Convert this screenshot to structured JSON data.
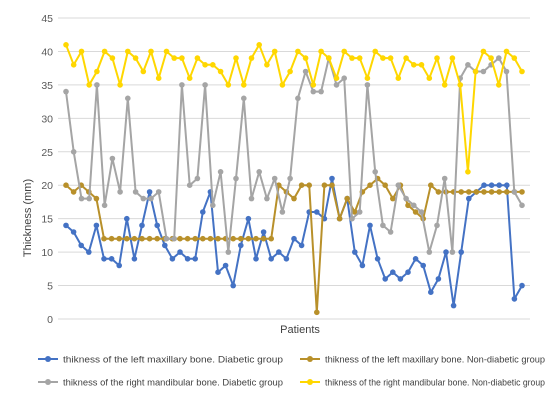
{
  "chart_data": {
    "type": "line",
    "title": "",
    "xlabel": "Patients",
    "ylabel": "Thickness  (mm)",
    "ylim": [
      0,
      45
    ],
    "yticks": [
      0,
      5,
      10,
      15,
      20,
      25,
      30,
      35,
      40,
      45
    ],
    "grid": "horizontal",
    "legend_position": "bottom",
    "series": [
      {
        "name": "thikness of the left maxillary bone. Diabetic group",
        "color": "#4472C4",
        "values": [
          14,
          13,
          11,
          10,
          14,
          9,
          9,
          8,
          15,
          9,
          14,
          19,
          14,
          11,
          9,
          10,
          9,
          9,
          16,
          19,
          7,
          8,
          5,
          11,
          15,
          9,
          13,
          9,
          10,
          9,
          12,
          11,
          16,
          16,
          15,
          21,
          15,
          18,
          10,
          8,
          14,
          9,
          6,
          7,
          6,
          7,
          9,
          8,
          4,
          6,
          10,
          2,
          10,
          18,
          19,
          20,
          20,
          20,
          20,
          3,
          5
        ]
      },
      {
        "name": "thikness of the left maxillary bone. Non-diabetic group",
        "color": "#B8902A",
        "values": [
          20,
          19,
          20,
          19,
          18,
          12,
          12,
          12,
          12,
          12,
          12,
          12,
          12,
          12,
          12,
          12,
          12,
          12,
          12,
          12,
          12,
          12,
          12,
          12,
          12,
          12,
          12,
          12,
          20,
          19,
          18,
          20,
          20,
          1,
          20,
          20,
          15,
          18,
          16,
          19,
          20,
          21,
          20,
          18,
          20,
          17,
          16,
          15,
          20,
          19,
          19,
          19,
          19,
          19,
          19,
          19,
          19,
          19,
          19,
          19,
          19
        ]
      },
      {
        "name": "thikness of the right mandibular bone. Diabetic group",
        "color": "#A5A5A5",
        "values": [
          34,
          25,
          18,
          18,
          35,
          17,
          24,
          19,
          33,
          19,
          18,
          18,
          19,
          12,
          12,
          35,
          20,
          21,
          35,
          17,
          22,
          10,
          21,
          33,
          18,
          22,
          18,
          21,
          16,
          21,
          33,
          37,
          34,
          34,
          39,
          35,
          36,
          15,
          16,
          35,
          22,
          14,
          13,
          20,
          18,
          17,
          16,
          10,
          14,
          21,
          10,
          36,
          38,
          37,
          37,
          38,
          39,
          37,
          19,
          17
        ]
      },
      {
        "name": "thikness of the right mandibular bone.  Non-diabetic group",
        "color": "#FFD700",
        "values": [
          41,
          38,
          40,
          35,
          37,
          40,
          39,
          35,
          40,
          39,
          37,
          40,
          36,
          40,
          39,
          39,
          36,
          39,
          38,
          38,
          37,
          35,
          39,
          35,
          39,
          41,
          38,
          40,
          35,
          37,
          40,
          39,
          35,
          40,
          39,
          36,
          40,
          39,
          39,
          36,
          40,
          39,
          39,
          36,
          39,
          38,
          38,
          36,
          39,
          35,
          39,
          35,
          22,
          37,
          40,
          39,
          35,
          40,
          39,
          37
        ]
      }
    ]
  }
}
